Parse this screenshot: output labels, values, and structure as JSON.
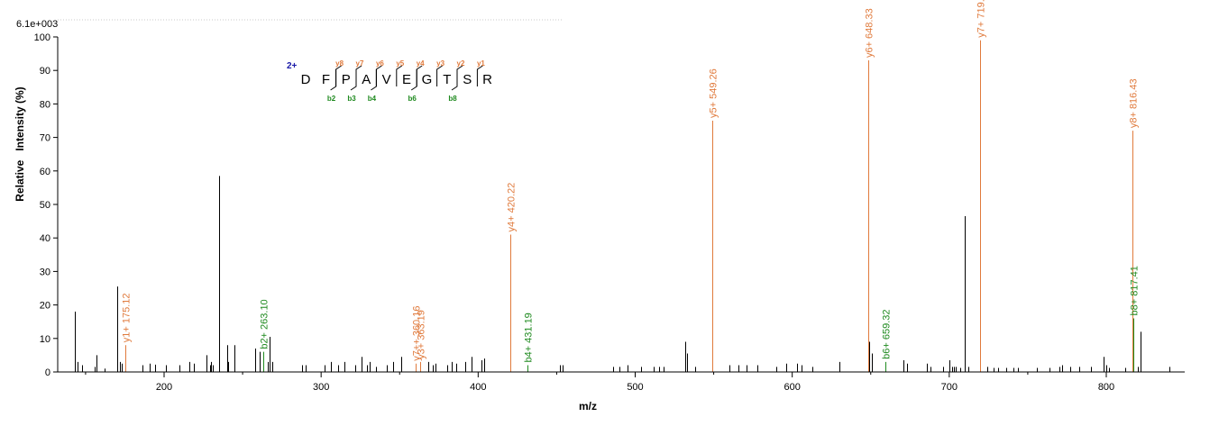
{
  "chart_data": {
    "type": "bar",
    "scale_label": "6.1e+003",
    "xlabel": "m/z",
    "ylabel": "Relative   Intensity (%)",
    "xlim": [
      140,
      850
    ],
    "ylim": [
      0,
      100
    ],
    "xticks": [
      200,
      300,
      400,
      500,
      600,
      700,
      800
    ],
    "yticks": [
      0,
      10,
      20,
      30,
      40,
      50,
      60,
      70,
      80,
      90,
      100
    ],
    "colors": {
      "y_ion": "#e07a3c",
      "b_ion": "#1f8a1f",
      "other": "#000000",
      "charge": "#1a1aa8"
    },
    "sequence": {
      "charge": "2+",
      "residues": [
        "D",
        "F",
        "P",
        "A",
        "V",
        "E",
        "G",
        "T",
        "S",
        "R"
      ],
      "y_marks": [
        {
          "after": 2,
          "label": "y8"
        },
        {
          "after": 3,
          "label": "y7"
        },
        {
          "after": 4,
          "label": "y6"
        },
        {
          "after": 5,
          "label": "y5"
        },
        {
          "after": 6,
          "label": "y4"
        },
        {
          "after": 7,
          "label": "y3"
        },
        {
          "after": 8,
          "label": "y2"
        },
        {
          "after": 9,
          "label": "y1"
        }
      ],
      "b_marks": [
        {
          "after": 2,
          "label": "b2"
        },
        {
          "after": 3,
          "label": "b3"
        },
        {
          "after": 4,
          "label": "b4"
        },
        {
          "after": 6,
          "label": "b6"
        },
        {
          "after": 8,
          "label": "b8"
        }
      ]
    },
    "annotated_peaks": [
      {
        "mz": 175.12,
        "intensity": 8,
        "label": "y1+ 175.12",
        "ion": "y"
      },
      {
        "mz": 263.1,
        "intensity": 6,
        "label": "b2+ 263.10",
        "ion": "b"
      },
      {
        "mz": 360.16,
        "intensity": 2.5,
        "label": "y7++ 360.16",
        "ion": "y"
      },
      {
        "mz": 363.19,
        "intensity": 3,
        "label": "y3+ 363.19",
        "ion": "y"
      },
      {
        "mz": 420.22,
        "intensity": 41,
        "label": "y4+ 420.22",
        "ion": "y"
      },
      {
        "mz": 431.19,
        "intensity": 2,
        "label": "b4+ 431.19",
        "ion": "b"
      },
      {
        "mz": 549.26,
        "intensity": 75,
        "label": "y5+ 549.26",
        "ion": "y"
      },
      {
        "mz": 648.33,
        "intensity": 93,
        "label": "y6+ 648.33",
        "ion": "y"
      },
      {
        "mz": 659.32,
        "intensity": 3,
        "label": "b6+ 659.32",
        "ion": "b"
      },
      {
        "mz": 719.37,
        "intensity": 99,
        "label": "y7+ 719.37",
        "ion": "y"
      },
      {
        "mz": 816.43,
        "intensity": 72,
        "label": "y8+ 816.43",
        "ion": "y"
      },
      {
        "mz": 817.41,
        "intensity": 16,
        "label": "b8+ 817.41",
        "ion": "b"
      }
    ],
    "other_peaks": [
      [
        143,
        18
      ],
      [
        145,
        3
      ],
      [
        148,
        2
      ],
      [
        156,
        1.5
      ],
      [
        157,
        5
      ],
      [
        162,
        1
      ],
      [
        170,
        25.5
      ],
      [
        172,
        3
      ],
      [
        173,
        2.5
      ],
      [
        186,
        2
      ],
      [
        191,
        2.5
      ],
      [
        194,
        2.2
      ],
      [
        201,
        2
      ],
      [
        210,
        2
      ],
      [
        216,
        3
      ],
      [
        219,
        2.5
      ],
      [
        227,
        5
      ],
      [
        229,
        2
      ],
      [
        230,
        3
      ],
      [
        231,
        2
      ],
      [
        235,
        58.5
      ],
      [
        240,
        8
      ],
      [
        241,
        3
      ],
      [
        245,
        8
      ],
      [
        258,
        7
      ],
      [
        261,
        6
      ],
      [
        266,
        3
      ],
      [
        267,
        10.5
      ],
      [
        269,
        3
      ],
      [
        288,
        2
      ],
      [
        290,
        2
      ],
      [
        302,
        2
      ],
      [
        306,
        3
      ],
      [
        311,
        2
      ],
      [
        315,
        3
      ],
      [
        322,
        2
      ],
      [
        326,
        4.5
      ],
      [
        329,
        2
      ],
      [
        331,
        3
      ],
      [
        335,
        1.5
      ],
      [
        342,
        2
      ],
      [
        346,
        3
      ],
      [
        351,
        4.5
      ],
      [
        368,
        3
      ],
      [
        371,
        2
      ],
      [
        373,
        2.5
      ],
      [
        380,
        2
      ],
      [
        383,
        3
      ],
      [
        386,
        2.5
      ],
      [
        392,
        3
      ],
      [
        396,
        4.5
      ],
      [
        402,
        3.5
      ],
      [
        404,
        4
      ],
      [
        452,
        2
      ],
      [
        454,
        2
      ],
      [
        486,
        1.5
      ],
      [
        490,
        1.5
      ],
      [
        495,
        2
      ],
      [
        504,
        1.5
      ],
      [
        512,
        1.5
      ],
      [
        515,
        1.5
      ],
      [
        518,
        1.5
      ],
      [
        532,
        9
      ],
      [
        533,
        5.5
      ],
      [
        538,
        1.5
      ],
      [
        560,
        2
      ],
      [
        566,
        2
      ],
      [
        571,
        2
      ],
      [
        578,
        2
      ],
      [
        590,
        1.5
      ],
      [
        596,
        2.5
      ],
      [
        603,
        2.5
      ],
      [
        606,
        2
      ],
      [
        613,
        1.5
      ],
      [
        630,
        3
      ],
      [
        649,
        9
      ],
      [
        651,
        5.5
      ],
      [
        671,
        3.5
      ],
      [
        673,
        2.5
      ],
      [
        686,
        2.5
      ],
      [
        688,
        1.5
      ],
      [
        696,
        1.5
      ],
      [
        700,
        3.5
      ],
      [
        702,
        1.5
      ],
      [
        703,
        1.5
      ],
      [
        704,
        1.5
      ],
      [
        707,
        1.2
      ],
      [
        710,
        46.5
      ],
      [
        712,
        1.5
      ],
      [
        724,
        1.5
      ],
      [
        728,
        1.2
      ],
      [
        731,
        1.2
      ],
      [
        736,
        1.2
      ],
      [
        741,
        1.2
      ],
      [
        744,
        1.2
      ],
      [
        756,
        1.2
      ],
      [
        764,
        1.2
      ],
      [
        770,
        1.5
      ],
      [
        772,
        2
      ],
      [
        777,
        1.5
      ],
      [
        783,
        1.5
      ],
      [
        790,
        1.5
      ],
      [
        798,
        4.5
      ],
      [
        800,
        2
      ],
      [
        802,
        1.2
      ],
      [
        812,
        1.2
      ],
      [
        820,
        1.5
      ],
      [
        822,
        12
      ],
      [
        840,
        1.5
      ]
    ]
  }
}
